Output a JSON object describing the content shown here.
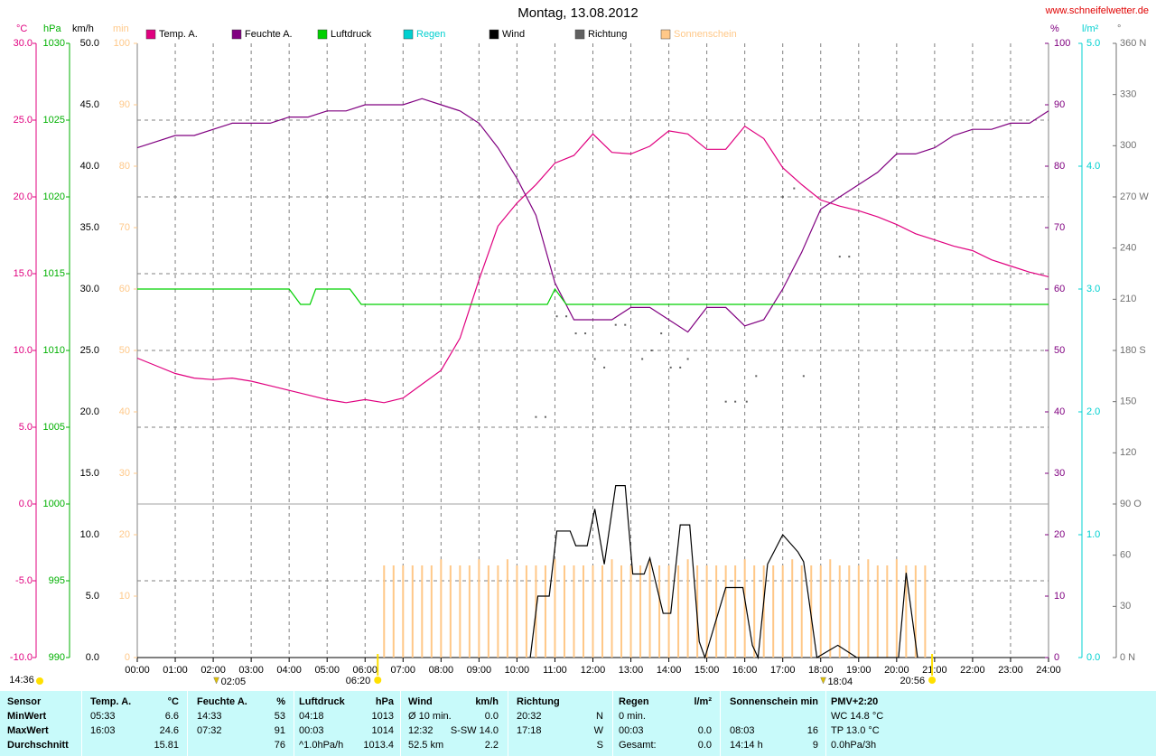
{
  "chart_data": {
    "type": "line",
    "title": "Montag, 13.08.2012",
    "source": "www.schneifelwetter.de",
    "grid": true,
    "xlim": [
      0,
      24
    ],
    "xticks": [
      {
        "value": 0,
        "label": "00:00"
      },
      {
        "value": 1,
        "label": "01:00"
      },
      {
        "value": 2,
        "label": "02:00"
      },
      {
        "value": 3,
        "label": "03:00"
      },
      {
        "value": 4,
        "label": "04:00"
      },
      {
        "value": 5,
        "label": "05:00"
      },
      {
        "value": 6,
        "label": "06:00"
      },
      {
        "value": 7,
        "label": "07:00"
      },
      {
        "value": 8,
        "label": "08:00"
      },
      {
        "value": 9,
        "label": "09:00"
      },
      {
        "value": 10,
        "label": "10:00"
      },
      {
        "value": 11,
        "label": "11:00"
      },
      {
        "value": 12,
        "label": "12:00"
      },
      {
        "value": 13,
        "label": "13:00"
      },
      {
        "value": 14,
        "label": "14:00"
      },
      {
        "value": 15,
        "label": "15:00"
      },
      {
        "value": 16,
        "label": "16:00"
      },
      {
        "value": 17,
        "label": "17:00"
      },
      {
        "value": 18,
        "label": "18:00"
      },
      {
        "value": 19,
        "label": "19:00"
      },
      {
        "value": 20,
        "label": "20:00"
      },
      {
        "value": 21,
        "label": "21:00"
      },
      {
        "value": 22,
        "label": "22:00"
      },
      {
        "value": 23,
        "label": "23:00"
      },
      {
        "value": 24,
        "label": "24:00"
      }
    ],
    "axes": {
      "temp": {
        "label": "°C",
        "color": "#e0007f",
        "lim": [
          -10,
          30
        ],
        "ticks": [
          {
            "value": -10,
            "label": "-10.0"
          },
          {
            "value": -5,
            "label": "-5.0"
          },
          {
            "value": 0,
            "label": "0.0"
          },
          {
            "value": 5,
            "label": "5.0"
          },
          {
            "value": 10,
            "label": "10.0"
          },
          {
            "value": 15,
            "label": "15.0"
          },
          {
            "value": 20,
            "label": "20.0"
          },
          {
            "value": 25,
            "label": "25.0"
          },
          {
            "value": 30,
            "label": "30.0"
          }
        ]
      },
      "press": {
        "label": "hPa",
        "color": "#00b000",
        "lim": [
          990,
          1030
        ],
        "ticks": [
          990,
          995,
          1000,
          1005,
          1010,
          1015,
          1020,
          1025,
          1030
        ]
      },
      "wind": {
        "label": "km/h",
        "color": "#000000",
        "lim": [
          0,
          50
        ],
        "ticks": [
          {
            "value": 0,
            "label": "0.0"
          },
          {
            "value": 5,
            "label": "5.0"
          },
          {
            "value": 10,
            "label": "10.0"
          },
          {
            "value": 15,
            "label": "15.0"
          },
          {
            "value": 20,
            "label": "20.0"
          },
          {
            "value": 25,
            "label": "25.0"
          },
          {
            "value": 30,
            "label": "30.0"
          },
          {
            "value": 35,
            "label": "35.0"
          },
          {
            "value": 40,
            "label": "40.0"
          },
          {
            "value": 45,
            "label": "45.0"
          },
          {
            "value": 50,
            "label": "50.0"
          }
        ]
      },
      "sun": {
        "label": "min",
        "color": "#ffc888",
        "lim": [
          0,
          100
        ],
        "ticks": [
          0,
          10,
          20,
          30,
          40,
          50,
          60,
          70,
          80,
          90,
          100
        ]
      },
      "hum": {
        "label": "%",
        "color": "#800080",
        "lim": [
          0,
          100
        ],
        "ticks": [
          0,
          10,
          20,
          30,
          40,
          50,
          60,
          70,
          80,
          90,
          100
        ]
      },
      "rain": {
        "label": "l/m²",
        "color": "#00d0d0",
        "lim": [
          0,
          5
        ],
        "ticks": [
          {
            "value": 0,
            "label": "0.0"
          },
          {
            "value": 1,
            "label": "1.0"
          },
          {
            "value": 2,
            "label": "2.0"
          },
          {
            "value": 3,
            "label": "3.0"
          },
          {
            "value": 4,
            "label": "4.0"
          },
          {
            "value": 5,
            "label": "5.0"
          }
        ]
      },
      "dir": {
        "label": "°",
        "color": "#707070",
        "lim": [
          0,
          360
        ],
        "ticks": [
          {
            "value": 0,
            "label": "0 N"
          },
          30,
          60,
          {
            "value": 90,
            "label": "90 O"
          },
          120,
          150,
          {
            "value": 180,
            "label": "180 S"
          },
          210,
          240,
          {
            "value": 270,
            "label": "270 W"
          },
          300,
          330,
          {
            "value": 360,
            "label": "360 N"
          }
        ]
      }
    },
    "series": [
      {
        "name": "Temp. A.",
        "color": "#e0007f",
        "axis": "temp",
        "style": "line",
        "x": [
          0,
          0.5,
          1,
          1.5,
          2,
          2.5,
          3,
          3.5,
          4,
          4.5,
          5,
          5.5,
          6,
          6.5,
          7,
          7.5,
          8,
          8.5,
          9,
          9.5,
          10,
          10.5,
          11,
          11.5,
          12,
          12.5,
          13,
          13.5,
          14,
          14.5,
          15,
          15.5,
          16,
          16.5,
          17,
          17.5,
          18,
          18.5,
          19,
          19.5,
          20,
          20.5,
          21,
          21.5,
          22,
          22.5,
          23,
          23.5,
          24
        ],
        "values": [
          9.5,
          9.0,
          8.5,
          8.2,
          8.1,
          8.2,
          8.0,
          7.7,
          7.4,
          7.1,
          6.8,
          6.6,
          6.8,
          6.6,
          6.9,
          7.8,
          8.7,
          10.8,
          14.6,
          18.1,
          19.6,
          20.8,
          22.2,
          22.7,
          24.1,
          22.9,
          22.8,
          23.3,
          24.3,
          24.1,
          23.1,
          23.1,
          24.6,
          23.8,
          21.9,
          20.8,
          19.8,
          19.4,
          19.1,
          18.7,
          18.2,
          17.6,
          17.2,
          16.8,
          16.5,
          15.9,
          15.5,
          15.1,
          14.8
        ]
      },
      {
        "name": "Feuchte A.",
        "color": "#800080",
        "axis": "hum",
        "style": "line",
        "x": [
          0,
          0.5,
          1,
          1.5,
          2,
          2.5,
          3,
          3.5,
          4,
          4.5,
          5,
          5.5,
          6,
          6.5,
          7,
          7.5,
          8,
          8.5,
          9,
          9.5,
          10,
          10.5,
          11,
          11.5,
          12,
          12.5,
          13,
          13.5,
          14,
          14.5,
          15,
          15.5,
          16,
          16.5,
          17,
          17.5,
          18,
          18.5,
          19,
          19.5,
          20,
          20.5,
          21,
          21.5,
          22,
          22.5,
          23,
          23.5,
          24
        ],
        "values": [
          83,
          84,
          85,
          85,
          86,
          87,
          87,
          87,
          88,
          88,
          89,
          89,
          90,
          90,
          90,
          91,
          90,
          89,
          87,
          83,
          78,
          72,
          61,
          55,
          55,
          55,
          57,
          57,
          55,
          53,
          57,
          57,
          54,
          55,
          60,
          66,
          73,
          75,
          77,
          79,
          82,
          82,
          83,
          85,
          86,
          86,
          87,
          87,
          89
        ]
      },
      {
        "name": "Luftdruck",
        "color": "#00d000",
        "axis": "press",
        "style": "line",
        "x": [
          0,
          4,
          4.3,
          4.55,
          4.7,
          5.6,
          5.9,
          10.8,
          11.0,
          11.3,
          24
        ],
        "values": [
          1014,
          1014,
          1013,
          1013,
          1014,
          1014,
          1013,
          1013,
          1014,
          1013,
          1013
        ]
      },
      {
        "name": "Regen",
        "color": "#00d0d0",
        "axis": "rain",
        "style": "line"
      },
      {
        "name": "Wind",
        "color": "#000000",
        "axis": "wind",
        "style": "line",
        "x": [
          10.35,
          10.55,
          10.85,
          11.05,
          11.4,
          11.55,
          11.85,
          12.05,
          12.3,
          12.6,
          12.85,
          13.05,
          13.35,
          13.5,
          13.85,
          14.05,
          14.3,
          14.55,
          14.8,
          14.95,
          15.5,
          15.95,
          16.2,
          16.35,
          16.6,
          17.0,
          17.4,
          17.55,
          17.9,
          18.45,
          18.95,
          20.05,
          20.25,
          20.55
        ],
        "values": [
          0,
          5.0,
          5.0,
          10.3,
          10.3,
          9.1,
          9.1,
          12.1,
          7.6,
          14.0,
          14.0,
          6.8,
          6.8,
          8.1,
          3.6,
          3.6,
          10.8,
          10.8,
          1.3,
          0,
          5.7,
          5.7,
          1.0,
          0,
          7.6,
          10.0,
          8.6,
          7.8,
          0,
          1.0,
          0,
          0,
          6.9,
          0
        ]
      },
      {
        "name": "Richtung",
        "color": "#606060",
        "axis": "dir",
        "style": "dots",
        "x": [
          10.5,
          10.75,
          11.05,
          11.3,
          11.55,
          11.8,
          12.05,
          12.3,
          12.6,
          12.85,
          13.3,
          13.55,
          13.8,
          14.05,
          14.3,
          14.5,
          15.5,
          15.75,
          16.05,
          16.3,
          17.0,
          17.3,
          17.55,
          18.5,
          18.75
        ],
        "values": [
          141,
          141,
          200,
          200,
          190,
          190,
          175,
          170,
          195,
          195,
          175,
          180,
          190,
          170,
          170,
          175,
          150,
          150,
          150,
          165,
          270,
          275,
          165,
          235,
          235
        ]
      },
      {
        "name": "Sonnenschein",
        "color": "#ffc888",
        "axis": "sun",
        "style": "bars",
        "x": [
          6.5,
          6.75,
          7,
          7.25,
          7.5,
          7.75,
          8,
          8.25,
          8.5,
          8.75,
          9,
          9.25,
          9.5,
          9.75,
          10,
          10.25,
          10.5,
          10.75,
          11,
          11.25,
          11.5,
          11.75,
          12,
          12.25,
          12.5,
          12.75,
          13,
          13.25,
          13.5,
          13.75,
          14,
          14.25,
          14.5,
          14.75,
          15,
          15.25,
          15.5,
          15.75,
          16,
          16.25,
          16.5,
          16.75,
          17,
          17.25,
          17.5,
          17.75,
          18,
          18.25,
          18.5,
          18.75,
          19,
          19.25,
          19.5,
          19.75,
          20,
          20.25,
          20.5,
          20.75
        ],
        "values": [
          15,
          15,
          15,
          15,
          15,
          15,
          16,
          15,
          15,
          15,
          16,
          15,
          15,
          16,
          15,
          15,
          15,
          15,
          16,
          15,
          15,
          15,
          15,
          15,
          16,
          15,
          15,
          15,
          16,
          15,
          15,
          15,
          16,
          15,
          15,
          15,
          15,
          15,
          16,
          15,
          15,
          15,
          15,
          16,
          15,
          15,
          15,
          16,
          15,
          15,
          15,
          16,
          15,
          15,
          16,
          15,
          15,
          15
        ]
      }
    ],
    "temp_markers": [
      {
        "value": 2.0833,
        "label": "02:05"
      },
      {
        "value": 18.0667,
        "label": "18:04"
      }
    ],
    "sun_markers": [
      {
        "value": 6.3333,
        "label": "06:20"
      },
      {
        "value": 20.9333,
        "label": "20:56"
      }
    ],
    "day_length": "14:36"
  },
  "table": {
    "header": {
      "sensor": "Sensor",
      "temp": "Temp. A.",
      "temp_unit": "°C",
      "hum": "Feuchte A.",
      "hum_unit": "%",
      "press": "Luftdruck",
      "press_unit": "hPa",
      "wind": "Wind",
      "wind_unit": "km/h",
      "dir": "Richtung",
      "rain": "Regen",
      "rain_unit": "l/m²",
      "sun": "Sonnenschein",
      "sun_unit": "min",
      "pmv": "PMV+2:20"
    },
    "rows": [
      {
        "label": "MinWert",
        "temp_t": "05:33",
        "temp": "6.6",
        "hum_t": "14:33",
        "hum": "53",
        "press_t": "04:18",
        "press": "1013",
        "wind_t": "Ø 10 min.",
        "wind": "0.0",
        "dir_t": "20:32",
        "dir": "N",
        "rain_t": "0 min.",
        "pmv": "WC 14.8 °C"
      },
      {
        "label": "MaxWert",
        "temp_t": "16:03",
        "temp": "24.6",
        "hum_t": "07:32",
        "hum": "91",
        "press_t": "00:03",
        "press": "1014",
        "wind_t": "12:32",
        "wind": "S-SW 14.0",
        "dir_t": "17:18",
        "dir": "W",
        "rain_t": "00:03",
        "rain": "0.0",
        "sun_t": "08:03",
        "sun": "16",
        "pmv": "TP 13.0 °C"
      },
      {
        "label": "Durchschnitt",
        "temp": "15.81",
        "hum": "76",
        "press_t": "^1.0hPa/h",
        "press": "1013.4",
        "wind_t": "52.5 km",
        "wind": "2.2",
        "dir": "S",
        "rain_t": "Gesamt:",
        "rain": "0.0",
        "sun_t": "14:14 h",
        "sun": "9",
        "pmv": "0.0hPa/3h"
      }
    ]
  }
}
